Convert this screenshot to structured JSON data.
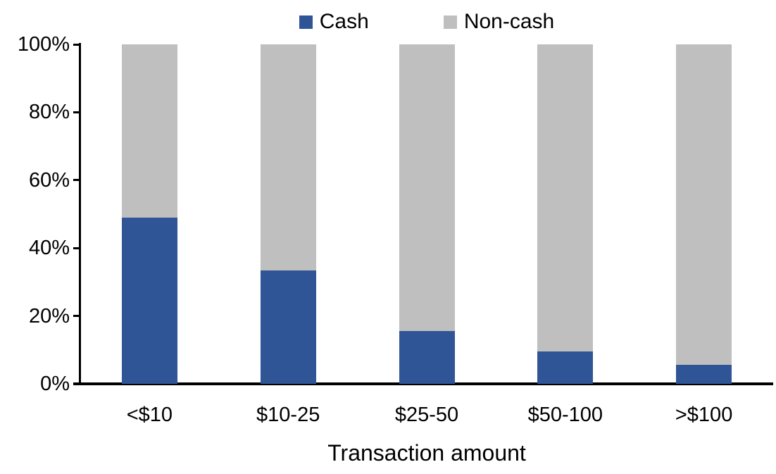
{
  "chart_data": {
    "type": "bar",
    "stacked": true,
    "percent_stacked": true,
    "title": "",
    "xlabel": "Transaction amount",
    "ylabel": "",
    "categories": [
      "<$10",
      "$10-25",
      "$25-50",
      "$50-100",
      ">$100"
    ],
    "series": [
      {
        "name": "Cash",
        "color": "#2F5597",
        "values": [
          49,
          33.5,
          15.5,
          9.5,
          5.5
        ]
      },
      {
        "name": "Non-cash",
        "color": "#BFBFBF",
        "values": [
          51,
          66.5,
          84.5,
          90.5,
          94.5
        ]
      }
    ],
    "ylim": [
      0,
      100
    ],
    "ytick_labels": [
      "0%",
      "20%",
      "40%",
      "60%",
      "80%",
      "100%"
    ],
    "grid": false,
    "legend_position": "top",
    "axis_color": "#000000",
    "background_color": "#FFFFFF"
  }
}
